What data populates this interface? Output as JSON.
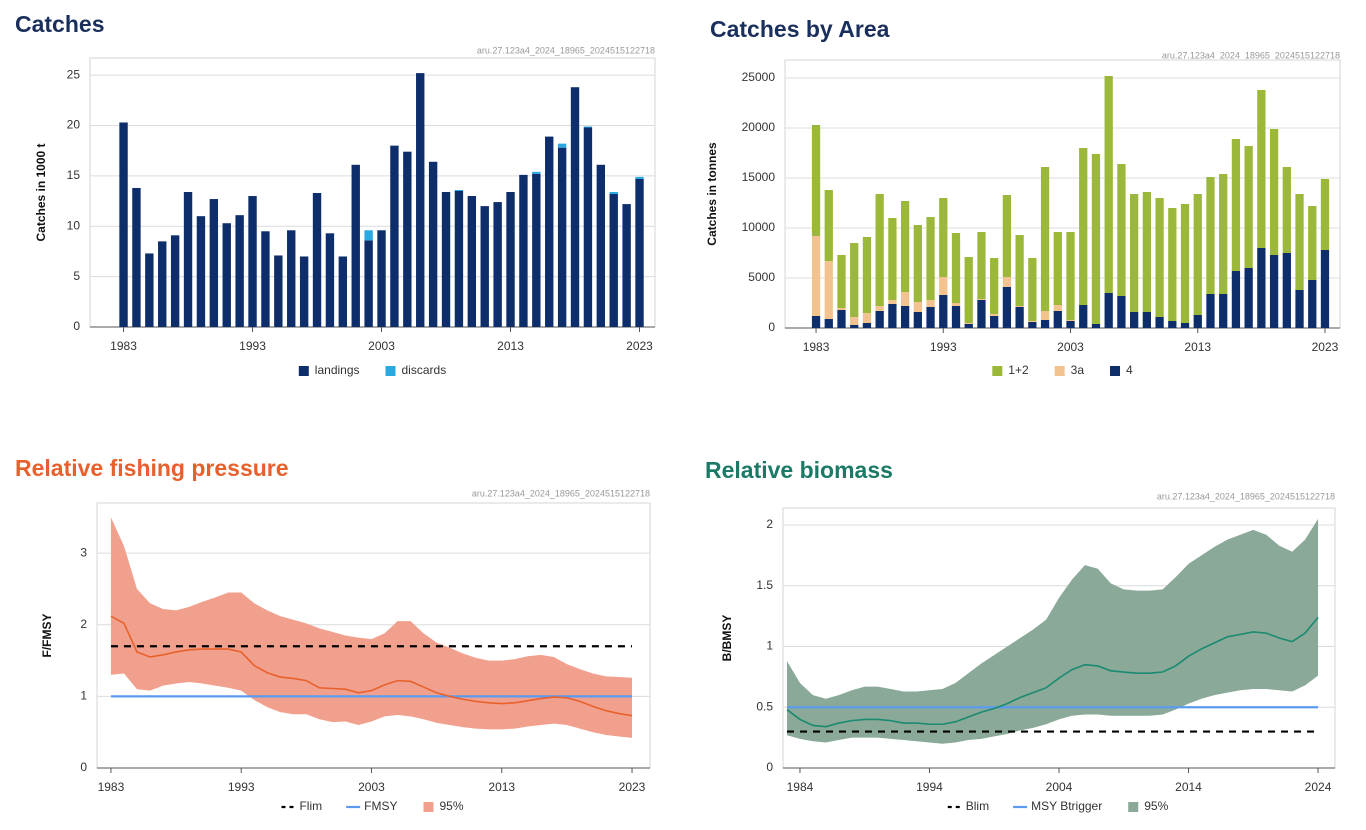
{
  "chart_data": [
    {
      "type": "bar",
      "stacked": true,
      "title": "Catches",
      "title_color": "#1b2f5c",
      "subtitle": "aru.27.123a4_2024_18965_2024515122718",
      "ylabel": "Catches in 1000 t",
      "x": [
        1983,
        1984,
        1985,
        1986,
        1987,
        1988,
        1989,
        1990,
        1991,
        1992,
        1993,
        1994,
        1995,
        1996,
        1997,
        1998,
        1999,
        2000,
        2001,
        2002,
        2003,
        2004,
        2005,
        2006,
        2007,
        2008,
        2009,
        2010,
        2011,
        2012,
        2013,
        2014,
        2015,
        2016,
        2017,
        2018,
        2019,
        2020,
        2021,
        2022,
        2023
      ],
      "series": [
        {
          "name": "landings",
          "color": "#0d2d6b",
          "values": [
            20.3,
            13.8,
            7.3,
            8.5,
            9.1,
            13.4,
            11.0,
            12.7,
            10.3,
            11.1,
            13.0,
            9.5,
            7.1,
            9.6,
            7.0,
            13.3,
            9.3,
            7.0,
            16.1,
            8.6,
            9.6,
            18.0,
            17.4,
            25.2,
            16.4,
            13.4,
            13.5,
            13.0,
            12.0,
            12.4,
            13.4,
            15.1,
            15.2,
            18.9,
            17.8,
            23.8,
            19.8,
            16.1,
            13.2,
            12.2,
            14.7
          ]
        },
        {
          "name": "discards",
          "color": "#2aa9e0",
          "values": [
            0,
            0,
            0,
            0,
            0,
            0,
            0,
            0,
            0,
            0,
            0,
            0,
            0,
            0,
            0,
            0,
            0,
            0,
            0,
            1.0,
            0,
            0,
            0,
            0,
            0,
            0,
            0.1,
            0,
            0,
            0,
            0,
            0,
            0.2,
            0,
            0.4,
            0,
            0.1,
            0,
            0.2,
            0,
            0.2
          ]
        }
      ],
      "xlim": [
        1980.4,
        2024.2
      ],
      "xticks": [
        1983,
        1993,
        2003,
        2013,
        2023
      ],
      "ylim": [
        0,
        26.7
      ],
      "yticks": [
        0,
        5,
        10,
        15,
        20,
        25
      ],
      "grid": true
    },
    {
      "type": "bar",
      "stacked": true,
      "title": "Catches by Area",
      "title_color": "#1b2f5c",
      "subtitle": "aru.27.123a4_2024_18965_2024515122718",
      "ylabel": "Catches in tonnes",
      "x": [
        1983,
        1984,
        1985,
        1986,
        1987,
        1988,
        1989,
        1990,
        1991,
        1992,
        1993,
        1994,
        1995,
        1996,
        1997,
        1998,
        1999,
        2000,
        2001,
        2002,
        2003,
        2004,
        2005,
        2006,
        2007,
        2008,
        2009,
        2010,
        2011,
        2012,
        2013,
        2014,
        2015,
        2016,
        2017,
        2018,
        2019,
        2020,
        2021,
        2022,
        2023
      ],
      "series": [
        {
          "name": "4",
          "color": "#0d2d6b",
          "values": [
            1200,
            900,
            1800,
            300,
            500,
            1700,
            2400,
            2200,
            1600,
            2100,
            3300,
            2200,
            400,
            2800,
            1200,
            4100,
            2100,
            600,
            800,
            1700,
            700,
            2300,
            400,
            3500,
            3200,
            1600,
            1600,
            1100,
            700,
            500,
            1300,
            3400,
            3400,
            5700,
            6000,
            8000,
            7300,
            7500,
            3800,
            4800,
            7800
          ]
        },
        {
          "name": "3a",
          "color": "#f2c38f",
          "values": [
            8000,
            5800,
            200,
            800,
            1000,
            500,
            400,
            1400,
            1000,
            700,
            1800,
            300,
            100,
            100,
            200,
            1000,
            100,
            100,
            900,
            600,
            100,
            0,
            0,
            0,
            0,
            0,
            0,
            0,
            0,
            0,
            0,
            0,
            0,
            0,
            0,
            0,
            0,
            0,
            0,
            0,
            0
          ]
        },
        {
          "name": "1+2",
          "color": "#9bb83b",
          "values": [
            11100,
            7100,
            5300,
            7400,
            7600,
            11200,
            8200,
            9100,
            7700,
            8300,
            7900,
            7000,
            6600,
            6700,
            5600,
            8200,
            7100,
            6300,
            14400,
            7300,
            8800,
            15700,
            17000,
            21700,
            13200,
            11800,
            12000,
            11900,
            11300,
            11900,
            12100,
            11700,
            12000,
            13200,
            12200,
            15800,
            12600,
            8600,
            9600,
            7400,
            7100
          ]
        }
      ],
      "legend_order": [
        2,
        1,
        0
      ],
      "xlim": [
        1980.56,
        2024.18
      ],
      "xticks": [
        1983,
        1993,
        2003,
        2013,
        2023
      ],
      "ylim": [
        0,
        26800
      ],
      "yticks": [
        0,
        5000,
        10000,
        15000,
        20000,
        25000
      ],
      "grid": true
    },
    {
      "type": "line",
      "title": "Relative fishing pressure",
      "title_color": "#e8612c",
      "subtitle": "aru.27.123a4_2024_18965_2024515122718",
      "ylabel": "F/FMSY",
      "x": [
        1983,
        1984,
        1985,
        1986,
        1987,
        1988,
        1989,
        1990,
        1991,
        1992,
        1993,
        1994,
        1995,
        1996,
        1997,
        1998,
        1999,
        2000,
        2001,
        2002,
        2003,
        2004,
        2005,
        2006,
        2007,
        2008,
        2009,
        2010,
        2011,
        2012,
        2013,
        2014,
        2015,
        2016,
        2017,
        2018,
        2019,
        2020,
        2021,
        2022,
        2023
      ],
      "values": [
        2.12,
        2.02,
        1.62,
        1.55,
        1.58,
        1.62,
        1.65,
        1.66,
        1.66,
        1.66,
        1.62,
        1.43,
        1.33,
        1.27,
        1.25,
        1.22,
        1.12,
        1.11,
        1.1,
        1.05,
        1.08,
        1.16,
        1.22,
        1.21,
        1.13,
        1.05,
        1.0,
        0.96,
        0.93,
        0.91,
        0.9,
        0.91,
        0.94,
        0.97,
        0.99,
        0.98,
        0.93,
        0.86,
        0.8,
        0.76,
        0.73
      ],
      "color": "#e8612c",
      "band": {
        "name": "95%",
        "color": "#f2a08e",
        "upper": [
          3.5,
          3.1,
          2.5,
          2.3,
          2.22,
          2.2,
          2.25,
          2.32,
          2.38,
          2.45,
          2.45,
          2.3,
          2.2,
          2.12,
          2.07,
          2.02,
          1.95,
          1.9,
          1.85,
          1.82,
          1.8,
          1.88,
          2.05,
          2.05,
          1.88,
          1.75,
          1.68,
          1.6,
          1.54,
          1.5,
          1.5,
          1.52,
          1.56,
          1.58,
          1.55,
          1.45,
          1.38,
          1.32,
          1.28,
          1.27,
          1.26
        ],
        "lower": [
          1.3,
          1.32,
          1.1,
          1.08,
          1.15,
          1.18,
          1.2,
          1.18,
          1.15,
          1.12,
          1.08,
          0.95,
          0.85,
          0.78,
          0.75,
          0.75,
          0.68,
          0.64,
          0.65,
          0.6,
          0.65,
          0.72,
          0.74,
          0.72,
          0.68,
          0.63,
          0.6,
          0.57,
          0.55,
          0.54,
          0.54,
          0.55,
          0.58,
          0.6,
          0.62,
          0.6,
          0.55,
          0.5,
          0.46,
          0.44,
          0.42
        ]
      },
      "reference_lines": [
        {
          "name": "Flim",
          "value": 1.7,
          "color": "#000000",
          "dashed": true
        },
        {
          "name": "FMSY",
          "value": 1.0,
          "color": "#5b9bef",
          "dashed": false
        }
      ],
      "xlim": [
        1981.93,
        2024.38
      ],
      "xticks": [
        1983,
        1993,
        2003,
        2013,
        2023
      ],
      "ylim": [
        0,
        3.7
      ],
      "yticks": [
        0,
        1,
        2,
        3
      ],
      "grid": true
    },
    {
      "type": "line",
      "title": "Relative biomass",
      "title_color": "#1a7a66",
      "subtitle": "aru.27.123a4_2024_18965_2024515122718",
      "ylabel": "B/BMSY",
      "x": [
        1983,
        1984,
        1985,
        1986,
        1987,
        1988,
        1989,
        1990,
        1991,
        1992,
        1993,
        1994,
        1995,
        1996,
        1997,
        1998,
        1999,
        2000,
        2001,
        2002,
        2003,
        2004,
        2005,
        2006,
        2007,
        2008,
        2009,
        2010,
        2011,
        2012,
        2013,
        2014,
        2015,
        2016,
        2017,
        2018,
        2019,
        2020,
        2021,
        2022,
        2023,
        2024
      ],
      "values": [
        0.48,
        0.4,
        0.35,
        0.34,
        0.37,
        0.39,
        0.4,
        0.4,
        0.39,
        0.37,
        0.37,
        0.36,
        0.36,
        0.38,
        0.42,
        0.46,
        0.49,
        0.53,
        0.58,
        0.62,
        0.66,
        0.74,
        0.81,
        0.85,
        0.84,
        0.8,
        0.79,
        0.78,
        0.78,
        0.79,
        0.84,
        0.92,
        0.98,
        1.03,
        1.08,
        1.1,
        1.12,
        1.11,
        1.07,
        1.04,
        1.11,
        1.24
      ],
      "color": "#1a8a70",
      "band": {
        "name": "95%",
        "color": "#8aa999",
        "upper": [
          0.88,
          0.7,
          0.6,
          0.57,
          0.6,
          0.64,
          0.67,
          0.67,
          0.65,
          0.63,
          0.63,
          0.64,
          0.65,
          0.7,
          0.78,
          0.86,
          0.93,
          1.0,
          1.07,
          1.14,
          1.22,
          1.4,
          1.55,
          1.67,
          1.64,
          1.52,
          1.47,
          1.46,
          1.46,
          1.47,
          1.57,
          1.68,
          1.75,
          1.82,
          1.88,
          1.92,
          1.96,
          1.92,
          1.83,
          1.78,
          1.88,
          2.05
        ],
        "lower": [
          0.27,
          0.24,
          0.22,
          0.21,
          0.23,
          0.25,
          0.25,
          0.25,
          0.24,
          0.23,
          0.22,
          0.21,
          0.2,
          0.21,
          0.23,
          0.24,
          0.26,
          0.28,
          0.31,
          0.33,
          0.36,
          0.4,
          0.43,
          0.44,
          0.44,
          0.43,
          0.43,
          0.43,
          0.43,
          0.44,
          0.48,
          0.53,
          0.57,
          0.6,
          0.62,
          0.64,
          0.65,
          0.65,
          0.64,
          0.63,
          0.68,
          0.76
        ]
      },
      "reference_lines": [
        {
          "name": "Blim",
          "value": 0.3,
          "color": "#000000",
          "dashed": true
        },
        {
          "name": "MSY Btrigger",
          "value": 0.5,
          "color": "#5b9bef",
          "dashed": false
        }
      ],
      "xlim": [
        1982.69,
        2025.31
      ],
      "xticks": [
        1984,
        1994,
        2004,
        2014,
        2024
      ],
      "ylim": [
        0,
        2.14
      ],
      "yticks": [
        0,
        0.5,
        1,
        1.5,
        2
      ],
      "grid": true
    }
  ]
}
